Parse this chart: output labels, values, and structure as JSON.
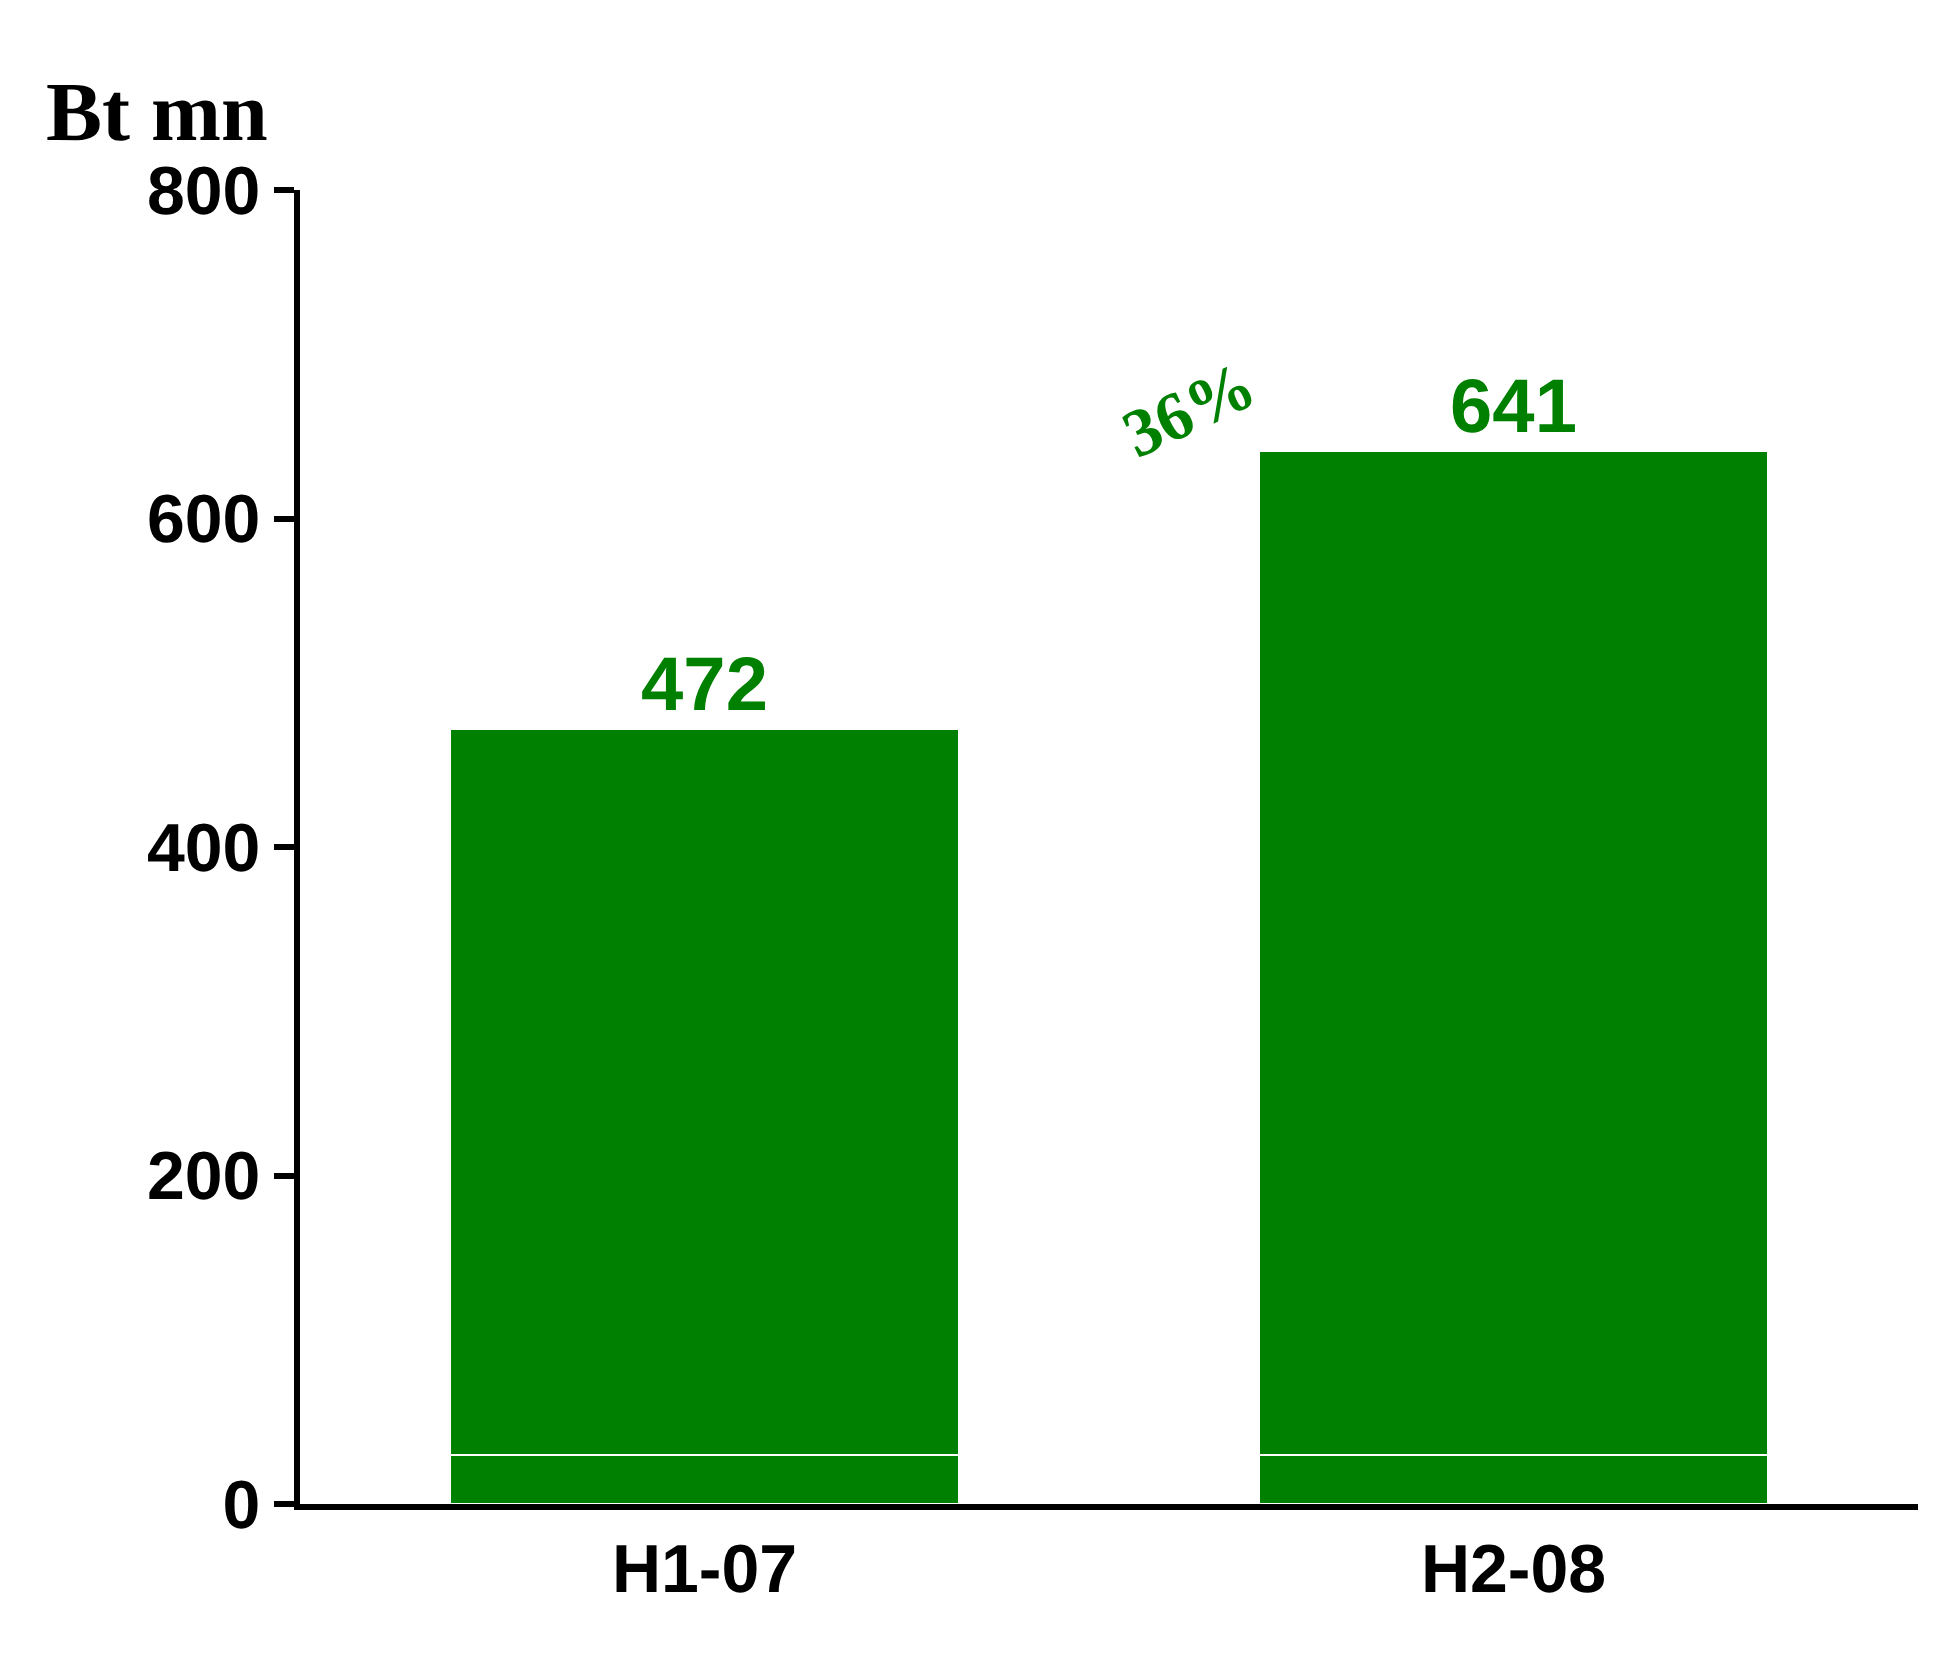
{
  "chart_data": {
    "type": "bar",
    "ylabel": "Bt mn",
    "categories": [
      "H1-07",
      "H2-08"
    ],
    "stacked": true,
    "series": [
      {
        "color": "#008000",
        "values": [
          30,
          30
        ]
      },
      {
        "color": "#008000",
        "values": [
          442,
          611
        ]
      }
    ],
    "totals": [
      "472",
      "641"
    ],
    "ylim": [
      0,
      800
    ],
    "yticks": [
      0,
      200,
      400,
      600,
      800
    ],
    "annotations": [
      "36%"
    ]
  }
}
